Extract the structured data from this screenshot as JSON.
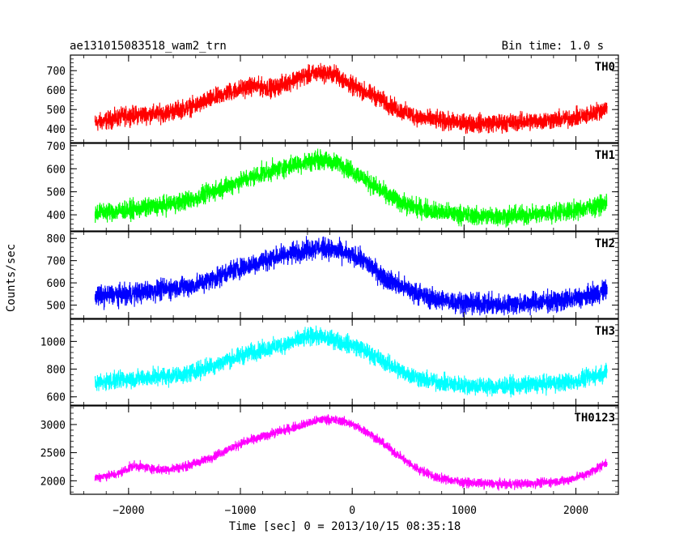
{
  "chart_data": {
    "type": "line",
    "title": "ae131015083518_wam2_trn",
    "subtitle": "Bin time: 1.0 s",
    "xlabel": "Time [sec] 0 = 2013/10/15 08:35:18",
    "ylabel": "Counts/sec",
    "xlim": [
      -2520,
      2380
    ],
    "xticks": [
      -2000,
      -1000,
      0,
      1000,
      2000
    ],
    "xtick_labels": [
      "−2000",
      "−1000",
      "0",
      "1000",
      "2000"
    ],
    "x_start": -2300,
    "x_end": 2280,
    "grid": false,
    "legend": "none",
    "panels": [
      {
        "name": "TH0",
        "color": "#ff0000",
        "ylim": [
          330,
          780
        ],
        "yticks": [
          400,
          500,
          600,
          700
        ],
        "points": [
          [
            -2300,
            430
          ],
          [
            -2000,
            470
          ],
          [
            -1700,
            480
          ],
          [
            -1400,
            520
          ],
          [
            -1100,
            590
          ],
          [
            -900,
            620
          ],
          [
            -700,
            610
          ],
          [
            -500,
            660
          ],
          [
            -300,
            690
          ],
          [
            -150,
            680
          ],
          [
            0,
            620
          ],
          [
            200,
            570
          ],
          [
            400,
            500
          ],
          [
            600,
            460
          ],
          [
            800,
            440
          ],
          [
            1000,
            430
          ],
          [
            1300,
            430
          ],
          [
            1600,
            440
          ],
          [
            1900,
            450
          ],
          [
            2100,
            470
          ],
          [
            2280,
            510
          ]
        ],
        "noise": 40
      },
      {
        "name": "TH1",
        "color": "#00ff00",
        "ylim": [
          330,
          710
        ],
        "yticks": [
          400,
          500,
          600,
          700
        ],
        "points": [
          [
            -2300,
            410
          ],
          [
            -2000,
            420
          ],
          [
            -1700,
            440
          ],
          [
            -1400,
            470
          ],
          [
            -1100,
            530
          ],
          [
            -800,
            580
          ],
          [
            -500,
            620
          ],
          [
            -300,
            640
          ],
          [
            -100,
            620
          ],
          [
            100,
            560
          ],
          [
            300,
            490
          ],
          [
            500,
            440
          ],
          [
            800,
            410
          ],
          [
            1100,
            395
          ],
          [
            1400,
            395
          ],
          [
            1700,
            405
          ],
          [
            2000,
            420
          ],
          [
            2280,
            450
          ]
        ],
        "noise": 35
      },
      {
        "name": "TH2",
        "color": "#0000ff",
        "ylim": [
          440,
          830
        ],
        "yticks": [
          500,
          600,
          700,
          800
        ],
        "points": [
          [
            -2300,
            540
          ],
          [
            -2000,
            550
          ],
          [
            -1700,
            570
          ],
          [
            -1400,
            590
          ],
          [
            -1100,
            650
          ],
          [
            -800,
            700
          ],
          [
            -500,
            740
          ],
          [
            -300,
            760
          ],
          [
            -100,
            740
          ],
          [
            100,
            700
          ],
          [
            300,
            620
          ],
          [
            500,
            570
          ],
          [
            700,
            530
          ],
          [
            1000,
            510
          ],
          [
            1300,
            500
          ],
          [
            1600,
            510
          ],
          [
            1900,
            520
          ],
          [
            2100,
            540
          ],
          [
            2280,
            570
          ]
        ],
        "noise": 40
      },
      {
        "name": "TH3",
        "color": "#00ffff",
        "ylim": [
          540,
          1160
        ],
        "yticks": [
          600,
          800,
          1000
        ],
        "points": [
          [
            -2300,
            700
          ],
          [
            -2000,
            730
          ],
          [
            -1800,
            740
          ],
          [
            -1500,
            760
          ],
          [
            -1200,
            840
          ],
          [
            -900,
            920
          ],
          [
            -600,
            980
          ],
          [
            -350,
            1040
          ],
          [
            -150,
            1010
          ],
          [
            50,
            960
          ],
          [
            250,
            870
          ],
          [
            450,
            780
          ],
          [
            650,
            720
          ],
          [
            900,
            690
          ],
          [
            1200,
            675
          ],
          [
            1500,
            680
          ],
          [
            1800,
            700
          ],
          [
            2000,
            710
          ],
          [
            2280,
            780
          ]
        ],
        "noise": 55
      },
      {
        "name": "TH0123",
        "color": "#ff00ff",
        "ylim": [
          1760,
          3330
        ],
        "yticks": [
          2000,
          2500,
          3000
        ],
        "points": [
          [
            -2300,
            2060
          ],
          [
            -2100,
            2120
          ],
          [
            -1950,
            2270
          ],
          [
            -1700,
            2190
          ],
          [
            -1500,
            2250
          ],
          [
            -1300,
            2380
          ],
          [
            -1000,
            2660
          ],
          [
            -700,
            2850
          ],
          [
            -400,
            3020
          ],
          [
            -250,
            3100
          ],
          [
            -50,
            3050
          ],
          [
            150,
            2850
          ],
          [
            350,
            2550
          ],
          [
            550,
            2250
          ],
          [
            750,
            2060
          ],
          [
            1000,
            1970
          ],
          [
            1300,
            1940
          ],
          [
            1600,
            1950
          ],
          [
            1900,
            2000
          ],
          [
            2100,
            2120
          ],
          [
            2280,
            2330
          ]
        ],
        "noise": 70
      }
    ]
  }
}
